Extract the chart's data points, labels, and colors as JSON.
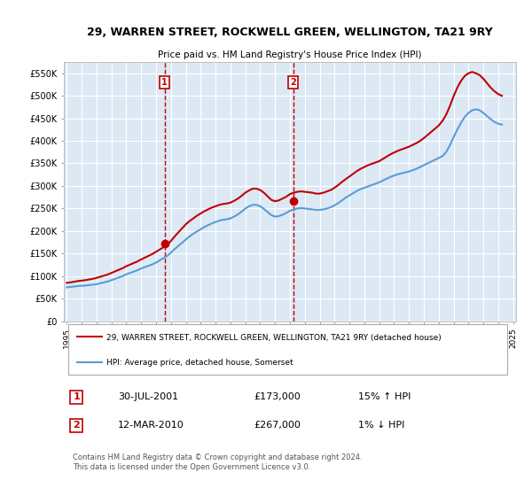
{
  "title": "29, WARREN STREET, ROCKWELL GREEN, WELLINGTON, TA21 9RY",
  "subtitle": "Price paid vs. HM Land Registry's House Price Index (HPI)",
  "background_color": "#ffffff",
  "plot_bg_color": "#dce9f5",
  "grid_color": "#ffffff",
  "ylim": [
    0,
    575000
  ],
  "yticks": [
    0,
    50000,
    100000,
    150000,
    200000,
    250000,
    300000,
    350000,
    400000,
    450000,
    500000,
    550000
  ],
  "ytick_labels": [
    "£0",
    "£50K",
    "£100K",
    "£150K",
    "£200K",
    "£250K",
    "£300K",
    "£350K",
    "£400K",
    "£450K",
    "£500K",
    "£550K"
  ],
  "xticks": [
    1995,
    1996,
    1997,
    1998,
    1999,
    2000,
    2001,
    2002,
    2003,
    2004,
    2005,
    2006,
    2007,
    2008,
    2009,
    2010,
    2011,
    2012,
    2013,
    2014,
    2015,
    2016,
    2017,
    2018,
    2019,
    2020,
    2021,
    2022,
    2023,
    2024,
    2025
  ],
  "hpi_line_color": "#5b9bd5",
  "price_line_color": "#c00000",
  "marker_color": "#c00000",
  "vline_color": "#c00000",
  "sale1_x": 2001.58,
  "sale1_y": 173000,
  "sale1_label": "1",
  "sale2_x": 2010.21,
  "sale2_y": 267000,
  "sale2_label": "2",
  "legend_price_label": "29, WARREN STREET, ROCKWELL GREEN, WELLINGTON, TA21 9RY (detached house)",
  "legend_hpi_label": "HPI: Average price, detached house, Somerset",
  "table_row1": [
    "1",
    "30-JUL-2001",
    "£173,000",
    "15% ↑ HPI"
  ],
  "table_row2": [
    "2",
    "12-MAR-2010",
    "£267,000",
    "1% ↓ HPI"
  ],
  "footer": "Contains HM Land Registry data © Crown copyright and database right 2024.\nThis data is licensed under the Open Government Licence v3.0.",
  "hpi_x": [
    1995,
    1995.25,
    1995.5,
    1995.75,
    1996,
    1996.25,
    1996.5,
    1996.75,
    1997,
    1997.25,
    1997.5,
    1997.75,
    1998,
    1998.25,
    1998.5,
    1998.75,
    1999,
    1999.25,
    1999.5,
    1999.75,
    2000,
    2000.25,
    2000.5,
    2000.75,
    2001,
    2001.25,
    2001.5,
    2001.75,
    2002,
    2002.25,
    2002.5,
    2002.75,
    2003,
    2003.25,
    2003.5,
    2003.75,
    2004,
    2004.25,
    2004.5,
    2004.75,
    2005,
    2005.25,
    2005.5,
    2005.75,
    2006,
    2006.25,
    2006.5,
    2006.75,
    2007,
    2007.25,
    2007.5,
    2007.75,
    2008,
    2008.25,
    2008.5,
    2008.75,
    2009,
    2009.25,
    2009.5,
    2009.75,
    2010,
    2010.25,
    2010.5,
    2010.75,
    2011,
    2011.25,
    2011.5,
    2011.75,
    2012,
    2012.25,
    2012.5,
    2012.75,
    2013,
    2013.25,
    2013.5,
    2013.75,
    2014,
    2014.25,
    2014.5,
    2014.75,
    2015,
    2015.25,
    2015.5,
    2015.75,
    2016,
    2016.25,
    2016.5,
    2016.75,
    2017,
    2017.25,
    2017.5,
    2017.75,
    2018,
    2018.25,
    2018.5,
    2018.75,
    2019,
    2019.25,
    2019.5,
    2019.75,
    2020,
    2020.25,
    2020.5,
    2020.75,
    2021,
    2021.25,
    2021.5,
    2021.75,
    2022,
    2022.25,
    2022.5,
    2022.75,
    2023,
    2023.25,
    2023.5,
    2023.75,
    2024,
    2024.25
  ],
  "hpi_y": [
    75000,
    76000,
    77000,
    78000,
    78500,
    79000,
    80000,
    81000,
    82000,
    84000,
    86000,
    88000,
    91000,
    94000,
    97000,
    100000,
    104000,
    107000,
    110000,
    113000,
    117000,
    120000,
    123000,
    126000,
    130000,
    135000,
    140000,
    145000,
    152000,
    160000,
    167000,
    174000,
    181000,
    188000,
    194000,
    199000,
    204000,
    209000,
    213000,
    217000,
    220000,
    223000,
    225000,
    226000,
    228000,
    232000,
    237000,
    243000,
    250000,
    255000,
    258000,
    258000,
    255000,
    249000,
    242000,
    235000,
    232000,
    233000,
    236000,
    240000,
    245000,
    248000,
    250000,
    251000,
    250000,
    249000,
    248000,
    247000,
    247000,
    248000,
    250000,
    253000,
    257000,
    262000,
    268000,
    274000,
    279000,
    284000,
    289000,
    293000,
    296000,
    299000,
    302000,
    305000,
    308000,
    312000,
    316000,
    320000,
    323000,
    326000,
    328000,
    330000,
    332000,
    335000,
    338000,
    342000,
    346000,
    350000,
    354000,
    358000,
    362000,
    366000,
    375000,
    390000,
    408000,
    425000,
    440000,
    453000,
    462000,
    468000,
    470000,
    468000,
    462000,
    455000,
    448000,
    442000,
    438000,
    436000
  ],
  "price_x": [
    1995,
    1995.25,
    1995.5,
    1995.75,
    1996,
    1996.25,
    1996.5,
    1996.75,
    1997,
    1997.25,
    1997.5,
    1997.75,
    1998,
    1998.25,
    1998.5,
    1998.75,
    1999,
    1999.25,
    1999.5,
    1999.75,
    2000,
    2000.25,
    2000.5,
    2000.75,
    2001,
    2001.25,
    2001.5,
    2001.75,
    2002,
    2002.25,
    2002.5,
    2002.75,
    2003,
    2003.25,
    2003.5,
    2003.75,
    2004,
    2004.25,
    2004.5,
    2004.75,
    2005,
    2005.25,
    2005.5,
    2005.75,
    2006,
    2006.25,
    2006.5,
    2006.75,
    2007,
    2007.25,
    2007.5,
    2007.75,
    2008,
    2008.25,
    2008.5,
    2008.75,
    2009,
    2009.25,
    2009.5,
    2009.75,
    2010,
    2010.25,
    2010.5,
    2010.75,
    2011,
    2011.25,
    2011.5,
    2011.75,
    2012,
    2012.25,
    2012.5,
    2012.75,
    2013,
    2013.25,
    2013.5,
    2013.75,
    2014,
    2014.25,
    2014.5,
    2014.75,
    2015,
    2015.25,
    2015.5,
    2015.75,
    2016,
    2016.25,
    2016.5,
    2016.75,
    2017,
    2017.25,
    2017.5,
    2017.75,
    2018,
    2018.25,
    2018.5,
    2018.75,
    2019,
    2019.25,
    2019.5,
    2019.75,
    2020,
    2020.25,
    2020.5,
    2020.75,
    2021,
    2021.25,
    2021.5,
    2021.75,
    2022,
    2022.25,
    2022.5,
    2022.75,
    2023,
    2023.25,
    2023.5,
    2023.75,
    2024,
    2024.25
  ],
  "price_y": [
    85000,
    86000,
    87500,
    89000,
    90000,
    91000,
    92500,
    94000,
    96000,
    98500,
    101000,
    103500,
    107000,
    110500,
    114000,
    117500,
    122000,
    125500,
    129000,
    132500,
    137000,
    141000,
    145000,
    149000,
    154000,
    159000,
    164000,
    170000,
    178000,
    188000,
    197000,
    206000,
    215000,
    222000,
    228000,
    234000,
    239000,
    244000,
    248000,
    252000,
    255000,
    258000,
    260000,
    261000,
    263000,
    267000,
    272000,
    278000,
    285000,
    290000,
    294000,
    294000,
    291000,
    285000,
    277000,
    269000,
    266000,
    268000,
    272000,
    276000,
    282000,
    285000,
    287000,
    288000,
    287000,
    286000,
    285000,
    283000,
    283000,
    285000,
    288000,
    291000,
    296000,
    302000,
    309000,
    315000,
    321000,
    327000,
    333000,
    338000,
    342000,
    346000,
    349000,
    352000,
    355000,
    360000,
    365000,
    370000,
    374000,
    378000,
    381000,
    384000,
    387000,
    391000,
    395000,
    400000,
    406000,
    413000,
    420000,
    427000,
    434000,
    444000,
    458000,
    477000,
    499000,
    518000,
    533000,
    544000,
    550000,
    553000,
    550000,
    546000,
    538000,
    528000,
    518000,
    510000,
    504000,
    500000
  ]
}
